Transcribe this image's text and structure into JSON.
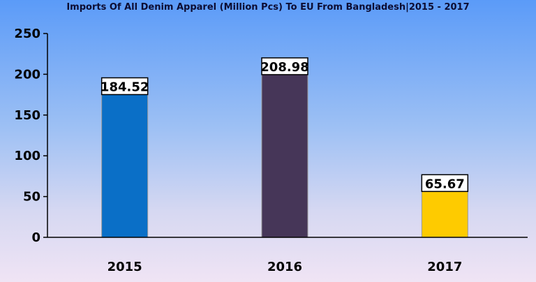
{
  "chart_data": {
    "type": "bar",
    "title": "Imports Of All Denim Apparel (Million Pcs) To EU From Bangladesh|2015 - 2017",
    "categories": [
      "2015",
      "2016",
      "2017"
    ],
    "series": [
      {
        "values": [
          184.52,
          208.98,
          65.67
        ]
      }
    ],
    "data_labels": [
      "184.52",
      "208.98",
      "65.67"
    ],
    "bar_colors": [
      "#0a6fc7",
      "#463658",
      "#fecb00"
    ],
    "ylim": [
      0,
      250
    ],
    "yticks": [
      0,
      50,
      100,
      150,
      200,
      250
    ],
    "xlabel": "",
    "ylabel": "",
    "grid": false,
    "legend": "none"
  }
}
